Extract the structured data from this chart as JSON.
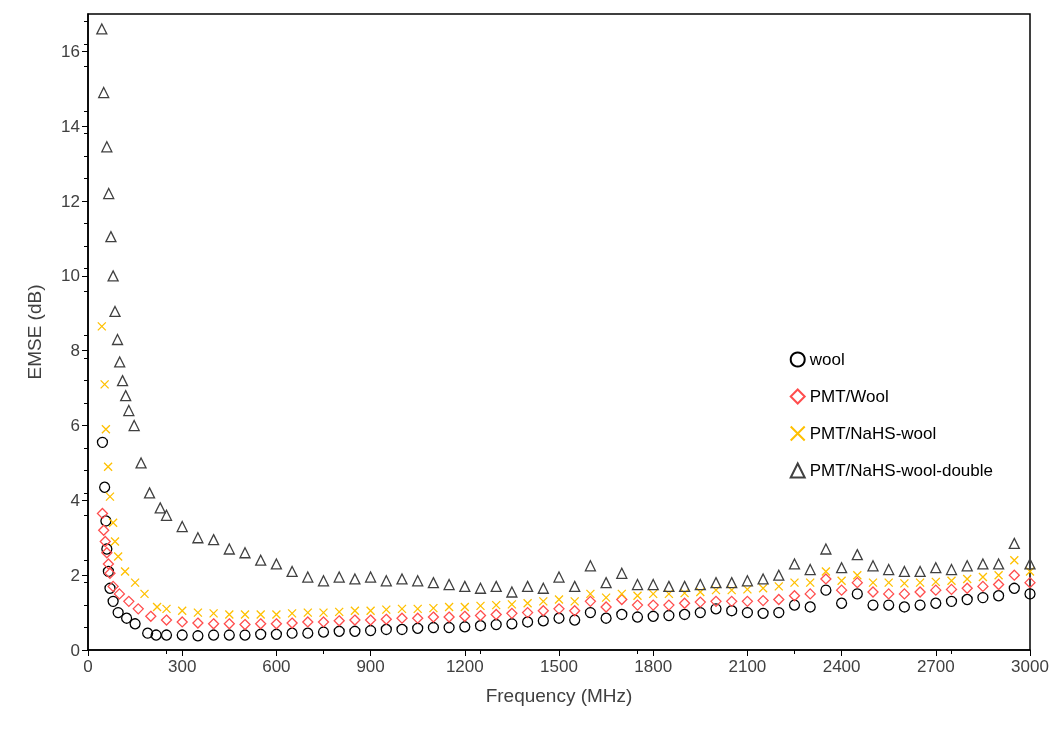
{
  "chart_data": {
    "type": "scatter",
    "xlabel": "Frequency (MHz)",
    "ylabel": "EMSE (dB)",
    "xlim": [
      0,
      3000
    ],
    "xticks": [
      0,
      300,
      600,
      900,
      1200,
      1500,
      1800,
      2100,
      2400,
      2700,
      3000
    ],
    "ylim": [
      0,
      17
    ],
    "yticks": [
      0,
      2,
      4,
      6,
      8,
      10,
      12,
      14,
      16
    ],
    "grid": false,
    "legend": "right",
    "series": [
      {
        "name": "wool",
        "color": "#000000",
        "marker": "circle",
        "x": [
          46,
          53,
          57,
          60,
          65,
          70,
          80,
          96,
          123,
          150,
          190,
          217,
          250,
          300,
          350,
          400,
          450,
          500,
          550,
          600,
          650,
          700,
          750,
          800,
          850,
          900,
          950,
          1000,
          1050,
          1100,
          1150,
          1200,
          1250,
          1300,
          1350,
          1400,
          1450,
          1500,
          1550,
          1600,
          1650,
          1700,
          1750,
          1800,
          1850,
          1900,
          1950,
          2000,
          2050,
          2100,
          2150,
          2200,
          2250,
          2300,
          2350,
          2400,
          2450,
          2500,
          2550,
          2600,
          2650,
          2700,
          2750,
          2800,
          2850,
          2900,
          2950,
          3000
        ],
        "values": [
          5.55,
          4.35,
          3.45,
          2.7,
          2.1,
          1.65,
          1.3,
          1.0,
          0.85,
          0.7,
          0.45,
          0.4,
          0.4,
          0.4,
          0.38,
          0.4,
          0.4,
          0.4,
          0.42,
          0.42,
          0.45,
          0.45,
          0.48,
          0.5,
          0.5,
          0.52,
          0.55,
          0.55,
          0.58,
          0.6,
          0.6,
          0.62,
          0.65,
          0.68,
          0.7,
          0.75,
          0.78,
          0.85,
          0.8,
          1.0,
          0.85,
          0.95,
          0.88,
          0.9,
          0.92,
          0.95,
          1.0,
          1.1,
          1.05,
          1.0,
          0.98,
          1.0,
          1.2,
          1.15,
          1.6,
          1.25,
          1.5,
          1.2,
          1.2,
          1.15,
          1.2,
          1.25,
          1.3,
          1.35,
          1.4,
          1.45,
          1.65,
          1.5
        ]
      },
      {
        "name": "PMT/Wool",
        "color": "#ff4d4d",
        "marker": "diamond",
        "x": [
          46,
          50,
          55,
          60,
          65,
          70,
          80,
          100,
          130,
          160,
          200,
          250,
          300,
          350,
          400,
          450,
          500,
          550,
          600,
          650,
          700,
          750,
          800,
          850,
          900,
          950,
          1000,
          1050,
          1100,
          1150,
          1200,
          1250,
          1300,
          1350,
          1400,
          1450,
          1500,
          1550,
          1600,
          1650,
          1700,
          1750,
          1800,
          1850,
          1900,
          1950,
          2000,
          2050,
          2100,
          2150,
          2200,
          2250,
          2300,
          2350,
          2400,
          2450,
          2500,
          2550,
          2600,
          2650,
          2700,
          2750,
          2800,
          2850,
          2900,
          2950,
          3000
        ],
        "values": [
          3.65,
          3.2,
          2.9,
          2.6,
          2.3,
          2.05,
          1.7,
          1.5,
          1.3,
          1.1,
          0.9,
          0.8,
          0.75,
          0.72,
          0.7,
          0.7,
          0.68,
          0.7,
          0.7,
          0.72,
          0.75,
          0.75,
          0.78,
          0.8,
          0.8,
          0.82,
          0.85,
          0.85,
          0.88,
          0.88,
          0.9,
          0.92,
          0.95,
          0.98,
          1.0,
          1.05,
          1.1,
          1.05,
          1.3,
          1.15,
          1.35,
          1.2,
          1.2,
          1.2,
          1.25,
          1.28,
          1.3,
          1.3,
          1.3,
          1.32,
          1.35,
          1.45,
          1.5,
          1.9,
          1.6,
          1.8,
          1.55,
          1.5,
          1.5,
          1.55,
          1.6,
          1.62,
          1.65,
          1.7,
          1.75,
          2.0,
          1.8
        ]
      },
      {
        "name": "PMT/NaHS-wool",
        "color": "#ffc000",
        "marker": "cross",
        "x": [
          44,
          53,
          57,
          64,
          70,
          80,
          86,
          96,
          118,
          150,
          180,
          220,
          250,
          300,
          350,
          400,
          450,
          500,
          550,
          600,
          650,
          700,
          750,
          800,
          850,
          900,
          950,
          1000,
          1050,
          1100,
          1150,
          1200,
          1250,
          1300,
          1350,
          1400,
          1450,
          1500,
          1550,
          1600,
          1650,
          1700,
          1750,
          1800,
          1850,
          1900,
          1950,
          2000,
          2050,
          2100,
          2150,
          2200,
          2250,
          2300,
          2350,
          2400,
          2450,
          2500,
          2550,
          2600,
          2650,
          2700,
          2750,
          2800,
          2850,
          2900,
          2950,
          3000
        ],
        "values": [
          8.65,
          7.1,
          5.9,
          4.9,
          4.1,
          3.4,
          2.9,
          2.5,
          2.1,
          1.8,
          1.5,
          1.15,
          1.1,
          1.05,
          1.0,
          0.98,
          0.95,
          0.95,
          0.95,
          0.95,
          0.98,
          1.0,
          1.0,
          1.02,
          1.05,
          1.05,
          1.08,
          1.1,
          1.1,
          1.12,
          1.15,
          1.15,
          1.18,
          1.2,
          1.22,
          1.25,
          1.3,
          1.35,
          1.3,
          1.5,
          1.4,
          1.5,
          1.45,
          1.5,
          1.5,
          1.52,
          1.55,
          1.6,
          1.6,
          1.62,
          1.65,
          1.7,
          1.8,
          1.8,
          2.1,
          1.85,
          2.0,
          1.8,
          1.8,
          1.78,
          1.8,
          1.82,
          1.85,
          1.9,
          1.95,
          2.0,
          2.4,
          2.1
        ]
      },
      {
        "name": "PMT/NaHS-wool-double",
        "color": "#404040",
        "marker": "triangle",
        "x": [
          44,
          50,
          60,
          66,
          73,
          80,
          86,
          94,
          101,
          110,
          120,
          130,
          147,
          169,
          196,
          230,
          250,
          300,
          350,
          400,
          450,
          500,
          550,
          600,
          650,
          700,
          750,
          800,
          850,
          900,
          950,
          1000,
          1050,
          1100,
          1150,
          1200,
          1250,
          1300,
          1350,
          1400,
          1450,
          1500,
          1550,
          1600,
          1650,
          1700,
          1750,
          1800,
          1850,
          1900,
          1950,
          2000,
          2050,
          2100,
          2150,
          2200,
          2250,
          2300,
          2350,
          2400,
          2450,
          2500,
          2550,
          2600,
          2650,
          2700,
          2750,
          2800,
          2850,
          2900,
          2950,
          3000
        ],
        "values": [
          16.6,
          14.9,
          13.45,
          12.2,
          11.05,
          10.0,
          9.05,
          8.3,
          7.7,
          7.2,
          6.8,
          6.4,
          6.0,
          5.0,
          4.2,
          3.8,
          3.6,
          3.3,
          3.0,
          2.95,
          2.7,
          2.6,
          2.4,
          2.3,
          2.1,
          1.95,
          1.85,
          1.95,
          1.9,
          1.95,
          1.85,
          1.9,
          1.85,
          1.8,
          1.75,
          1.7,
          1.65,
          1.7,
          1.55,
          1.7,
          1.65,
          1.95,
          1.7,
          2.25,
          1.8,
          2.05,
          1.75,
          1.75,
          1.7,
          1.7,
          1.75,
          1.8,
          1.8,
          1.85,
          1.9,
          2.0,
          2.3,
          2.15,
          2.7,
          2.2,
          2.55,
          2.25,
          2.15,
          2.1,
          2.1,
          2.2,
          2.15,
          2.25,
          2.3,
          2.3,
          2.85,
          2.3
        ]
      }
    ]
  }
}
